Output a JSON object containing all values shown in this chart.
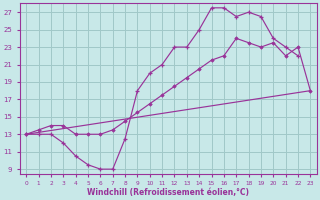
{
  "background_color": "#c8e8e8",
  "grid_color": "#a0c8c8",
  "line_color": "#993399",
  "xlabel": "Windchill (Refroidissement éolien,°C)",
  "xlim": [
    -0.5,
    23.5
  ],
  "ylim": [
    8.5,
    28.0
  ],
  "yticks": [
    9,
    11,
    13,
    15,
    17,
    19,
    21,
    23,
    25,
    27
  ],
  "xticks": [
    0,
    1,
    2,
    3,
    4,
    5,
    6,
    7,
    8,
    9,
    10,
    11,
    12,
    13,
    14,
    15,
    16,
    17,
    18,
    19,
    20,
    21,
    22,
    23
  ],
  "line1_x": [
    0,
    1,
    2,
    3,
    4,
    5,
    6,
    7,
    8,
    9,
    10,
    11,
    12,
    13,
    14,
    15,
    16,
    17,
    18,
    19,
    20,
    21,
    22
  ],
  "line1_y": [
    13,
    13,
    13,
    12,
    10.5,
    9.5,
    9,
    9,
    12.5,
    18,
    20,
    21,
    23,
    23,
    25,
    27.5,
    27.5,
    26.5,
    27,
    26.5,
    24,
    23,
    22
  ],
  "line2_x": [
    0,
    1,
    2,
    3,
    4,
    5,
    6,
    7,
    8,
    9,
    10,
    11,
    12,
    13,
    14,
    15,
    16,
    17,
    18,
    19,
    20,
    21,
    22,
    23
  ],
  "line2_y": [
    13,
    13.5,
    14,
    14,
    13,
    13,
    13,
    13.5,
    14.5,
    15.5,
    16.5,
    17.5,
    18.5,
    19.5,
    20.5,
    21.5,
    22,
    24,
    23.5,
    23,
    23.5,
    22,
    23,
    18
  ],
  "line3_x": [
    0,
    23
  ],
  "line3_y": [
    13,
    18
  ]
}
